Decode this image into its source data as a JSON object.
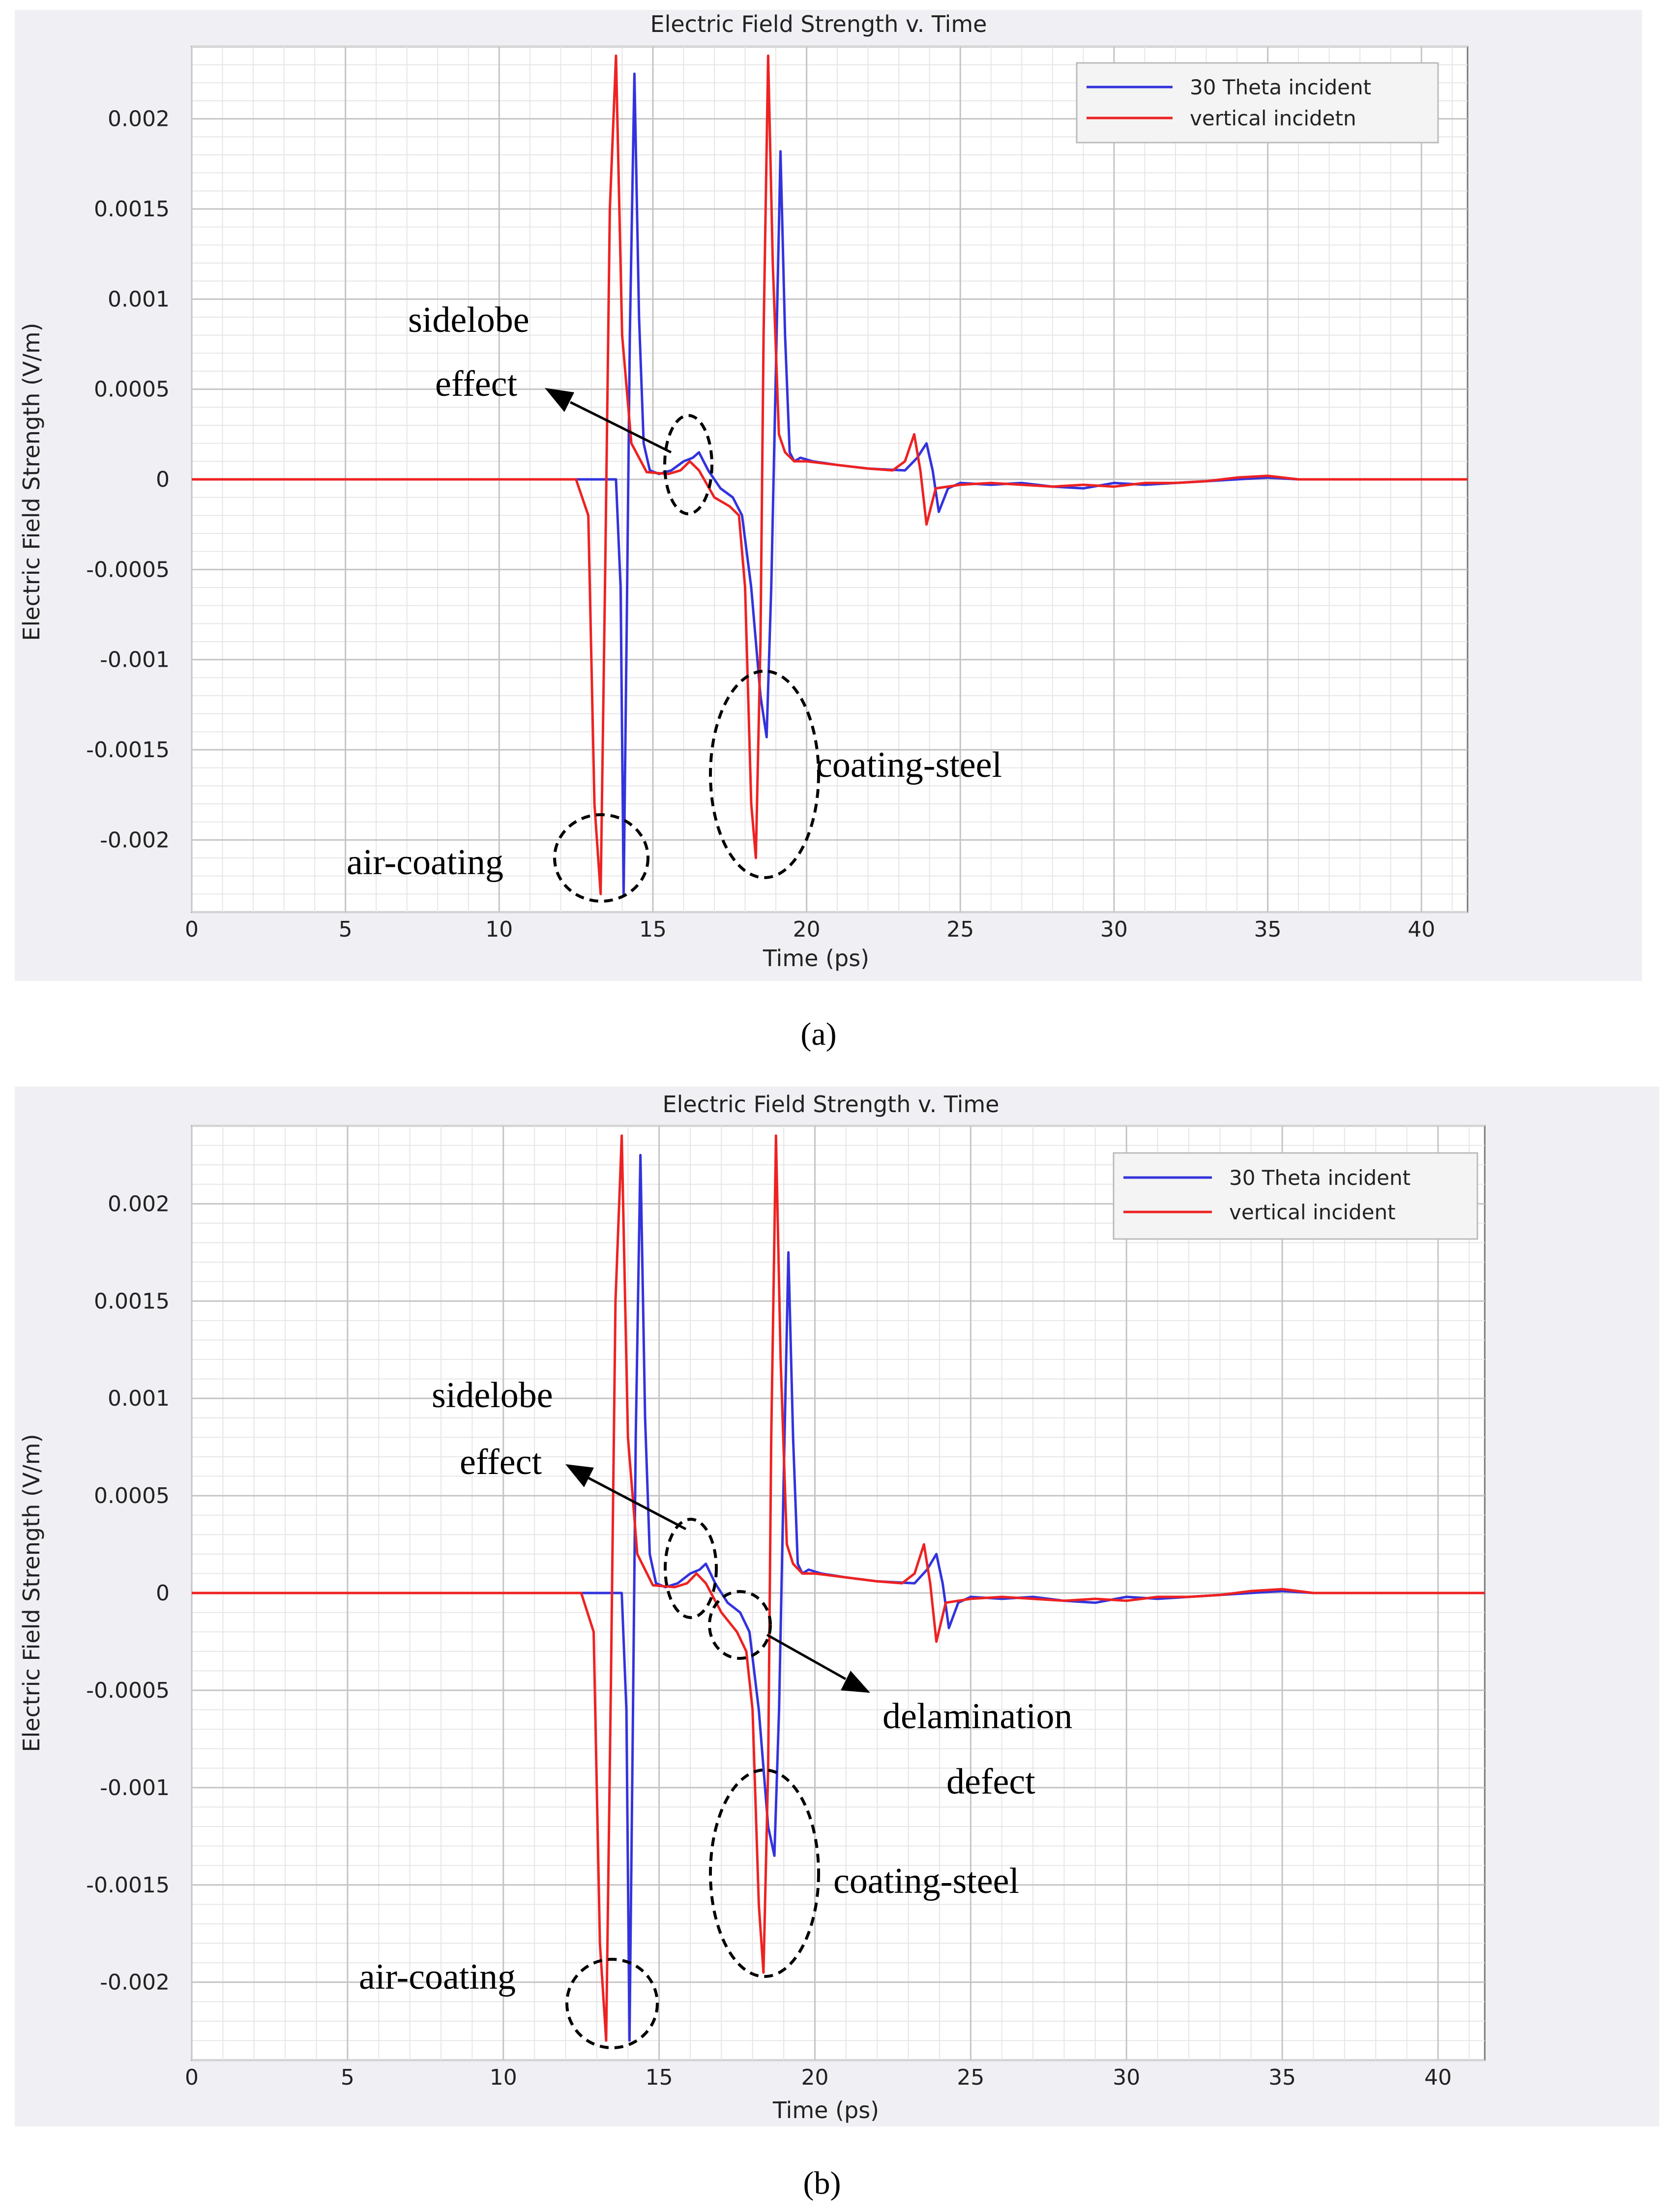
{
  "chart_data": [
    {
      "type": "line",
      "panel_caption": "(a)",
      "title": "Electric Field Strength v. Time",
      "xlabel": "Time (ps)",
      "ylabel": "Electric Field Strength (V/m)",
      "xlim": [
        0,
        41.5
      ],
      "ylim": [
        -0.0024,
        0.0024
      ],
      "xticks": [
        0,
        5,
        10,
        15,
        20,
        25,
        30,
        35,
        40
      ],
      "yticks": [
        -0.002,
        -0.0015,
        -0.001,
        -0.0005,
        0,
        0.0005,
        0.001,
        0.0015,
        0.002
      ],
      "ytick_labels": [
        "-0.002",
        "-0.0015",
        "-0.001",
        "-0.0005",
        "0",
        "0.0005",
        "0.001",
        "0.0015",
        "0.002"
      ],
      "grid": true,
      "legend_position": "top-right",
      "series": [
        {
          "name": "30 Theta incident",
          "color": "#3333dd",
          "x": [
            0,
            13.0,
            13.8,
            13.95,
            14.05,
            14.15,
            14.25,
            14.4,
            14.55,
            14.7,
            14.9,
            15.2,
            15.6,
            16.0,
            16.3,
            16.5,
            16.8,
            17.2,
            17.6,
            17.9,
            18.2,
            18.5,
            18.7,
            18.85,
            19.0,
            19.15,
            19.3,
            19.45,
            19.6,
            19.8,
            20.2,
            21,
            22,
            23.2,
            23.6,
            23.9,
            24.1,
            24.3,
            24.6,
            25,
            26,
            27,
            28,
            29,
            30,
            31,
            32,
            33,
            34,
            35,
            36,
            41.5
          ],
          "y": [
            0,
            0,
            0,
            -0.0006,
            -0.0023,
            -0.0008,
            0.0008,
            0.00225,
            0.0009,
            0.0002,
            5e-05,
            3e-05,
            5e-05,
            0.0001,
            0.00012,
            0.00015,
            5e-05,
            -5e-05,
            -0.0001,
            -0.0002,
            -0.0006,
            -0.0012,
            -0.00143,
            -0.0006,
            0.0006,
            0.00182,
            0.0008,
            0.00015,
            0.0001,
            0.00012,
            0.0001,
            8e-05,
            6e-05,
            5e-05,
            0.00012,
            0.0002,
            5e-05,
            -0.00018,
            -5e-05,
            -2e-05,
            -3e-05,
            -2e-05,
            -4e-05,
            -5e-05,
            -2e-05,
            -3e-05,
            -2e-05,
            -1e-05,
            0,
            1e-05,
            0,
            0
          ]
        },
        {
          "name": "vertical incidetn",
          "color": "#ee2222",
          "x": [
            0,
            12.5,
            12.9,
            13.1,
            13.3,
            13.45,
            13.6,
            13.8,
            14.0,
            14.3,
            14.8,
            15.5,
            15.9,
            16.2,
            16.5,
            17.0,
            17.5,
            17.8,
            18.0,
            18.2,
            18.35,
            18.5,
            18.6,
            18.75,
            18.9,
            19.1,
            19.3,
            19.6,
            20,
            21,
            22,
            22.8,
            23.2,
            23.5,
            23.7,
            23.9,
            24.2,
            25,
            26,
            27,
            28,
            29,
            30,
            31,
            32,
            33,
            34,
            35,
            36,
            41.5
          ],
          "y": [
            0,
            0,
            -0.0002,
            -0.0018,
            -0.0023,
            -0.0005,
            0.0015,
            0.00235,
            0.0008,
            0.0002,
            4e-05,
            3e-05,
            5e-05,
            0.0001,
            5e-05,
            -0.0001,
            -0.00015,
            -0.0002,
            -0.0006,
            -0.0018,
            -0.0021,
            -0.0009,
            0.0008,
            0.00235,
            0.0012,
            0.00025,
            0.00015,
            0.0001,
            0.0001,
            8e-05,
            6e-05,
            5e-05,
            0.0001,
            0.00025,
            5e-05,
            -0.00025,
            -5e-05,
            -3e-05,
            -2e-05,
            -3e-05,
            -4e-05,
            -3e-05,
            -4e-05,
            -2e-05,
            -2e-05,
            -1e-05,
            1e-05,
            2e-05,
            0,
            0
          ]
        }
      ],
      "annotations": [
        {
          "label": "sidelobe",
          "label2": "effect"
        },
        {
          "label": "coating-steel"
        },
        {
          "label": "air-coating"
        }
      ]
    },
    {
      "type": "line",
      "panel_caption": "(b)",
      "title": "Electric Field Strength v. Time",
      "xlabel": "Time (ps)",
      "ylabel": "Electric Field Strength (V/m)",
      "xlim": [
        0,
        41.5
      ],
      "ylim": [
        -0.0024,
        0.0024
      ],
      "xticks": [
        0,
        5,
        10,
        15,
        20,
        25,
        30,
        35,
        40
      ],
      "yticks": [
        -0.002,
        -0.0015,
        -0.001,
        -0.0005,
        0,
        0.0005,
        0.001,
        0.0015,
        0.002
      ],
      "ytick_labels": [
        "-0.002",
        "-0.0015",
        "-0.001",
        "-0.0005",
        "0",
        "0.0005",
        "0.001",
        "0.0015",
        "0.002"
      ],
      "grid": true,
      "legend_position": "top-right",
      "series": [
        {
          "name": "30 Theta incident",
          "color": "#3333dd",
          "x": [
            0,
            13.0,
            13.8,
            13.95,
            14.05,
            14.15,
            14.25,
            14.4,
            14.55,
            14.7,
            14.9,
            15.2,
            15.6,
            16.0,
            16.3,
            16.5,
            16.8,
            17.2,
            17.6,
            17.9,
            18.2,
            18.5,
            18.7,
            18.85,
            19.0,
            19.15,
            19.3,
            19.45,
            19.6,
            19.8,
            20.2,
            21,
            22,
            23.2,
            23.6,
            23.9,
            24.1,
            24.3,
            24.6,
            25,
            26,
            27,
            28,
            29,
            30,
            31,
            32,
            33,
            34,
            35,
            36,
            41.5
          ],
          "y": [
            0,
            0,
            0,
            -0.0006,
            -0.0023,
            -0.0008,
            0.0008,
            0.00225,
            0.0009,
            0.0002,
            5e-05,
            3e-05,
            5e-05,
            0.0001,
            0.00012,
            0.00015,
            5e-05,
            -5e-05,
            -0.0001,
            -0.0002,
            -0.0006,
            -0.0012,
            -0.00135,
            -0.0006,
            0.0006,
            0.00175,
            0.0008,
            0.00015,
            0.0001,
            0.00012,
            0.0001,
            8e-05,
            6e-05,
            5e-05,
            0.00012,
            0.0002,
            5e-05,
            -0.00018,
            -5e-05,
            -2e-05,
            -3e-05,
            -2e-05,
            -4e-05,
            -5e-05,
            -2e-05,
            -3e-05,
            -2e-05,
            -1e-05,
            0,
            1e-05,
            0,
            0
          ]
        },
        {
          "name": "vertical incident",
          "color": "#ee2222",
          "x": [
            0,
            12.5,
            12.9,
            13.1,
            13.3,
            13.45,
            13.6,
            13.8,
            14.0,
            14.3,
            14.8,
            15.5,
            15.9,
            16.2,
            16.5,
            17.0,
            17.5,
            17.8,
            18.0,
            18.2,
            18.35,
            18.5,
            18.6,
            18.75,
            18.9,
            19.1,
            19.3,
            19.6,
            20,
            21,
            22,
            22.8,
            23.2,
            23.5,
            23.7,
            23.9,
            24.2,
            25,
            26,
            27,
            28,
            29,
            30,
            31,
            32,
            33,
            34,
            35,
            36,
            41.5
          ],
          "y": [
            0,
            0,
            -0.0002,
            -0.0018,
            -0.0023,
            -0.0005,
            0.0015,
            0.00235,
            0.0008,
            0.0002,
            4e-05,
            3e-05,
            5e-05,
            0.0001,
            5e-05,
            -0.0001,
            -0.0002,
            -0.0003,
            -0.0006,
            -0.0016,
            -0.00195,
            -0.0009,
            0.0008,
            0.00235,
            0.0012,
            0.00025,
            0.00015,
            0.0001,
            0.0001,
            8e-05,
            6e-05,
            5e-05,
            0.0001,
            0.00025,
            5e-05,
            -0.00025,
            -5e-05,
            -3e-05,
            -2e-05,
            -3e-05,
            -4e-05,
            -3e-05,
            -4e-05,
            -2e-05,
            -2e-05,
            -1e-05,
            1e-05,
            2e-05,
            0,
            0
          ]
        }
      ],
      "annotations": [
        {
          "label": "sidelobe",
          "label2": "effect"
        },
        {
          "label": "delamination",
          "label2": "defect"
        },
        {
          "label": "coating-steel"
        },
        {
          "label": "air-coating"
        }
      ]
    }
  ]
}
